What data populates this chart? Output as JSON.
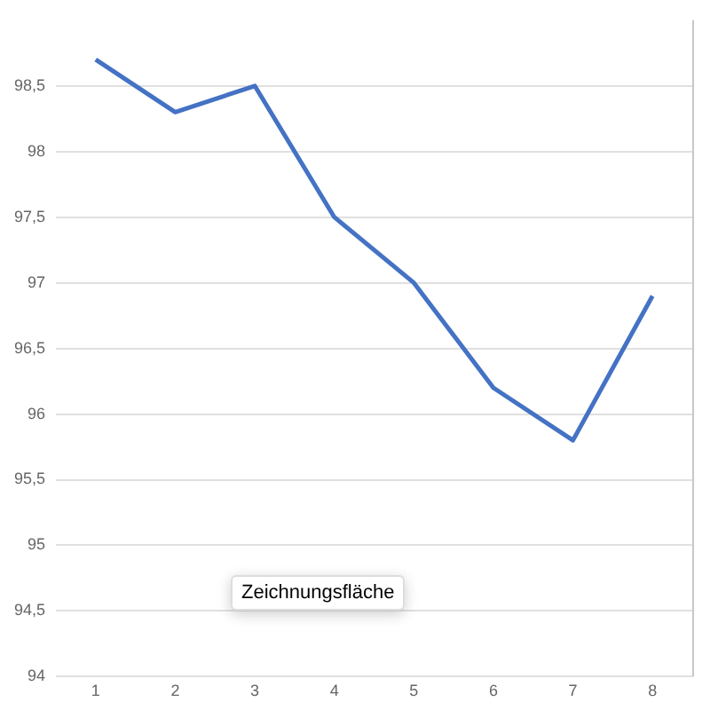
{
  "chart_data": {
    "type": "line",
    "categories": [
      "1",
      "2",
      "3",
      "4",
      "5",
      "6",
      "7",
      "8"
    ],
    "series": [
      {
        "color": "#4472c4",
        "values": [
          98.7,
          98.3,
          98.5,
          97.5,
          97.0,
          96.2,
          95.8,
          96.9
        ]
      }
    ],
    "ylim": [
      94,
      99
    ],
    "yticks": [
      94,
      {
        "value": 94.5,
        "label": "94,5"
      },
      95,
      {
        "value": 95.5,
        "label": "95,5"
      },
      96,
      {
        "value": 96.5,
        "label": "96,5"
      },
      97,
      {
        "value": 97.5,
        "label": "97,5"
      },
      98,
      {
        "value": 98.5,
        "label": "98,5"
      }
    ],
    "grid": "y",
    "legend": false,
    "marker": "none",
    "line_style": "solid",
    "annotations": [
      "Zeichnungsfläche"
    ]
  }
}
